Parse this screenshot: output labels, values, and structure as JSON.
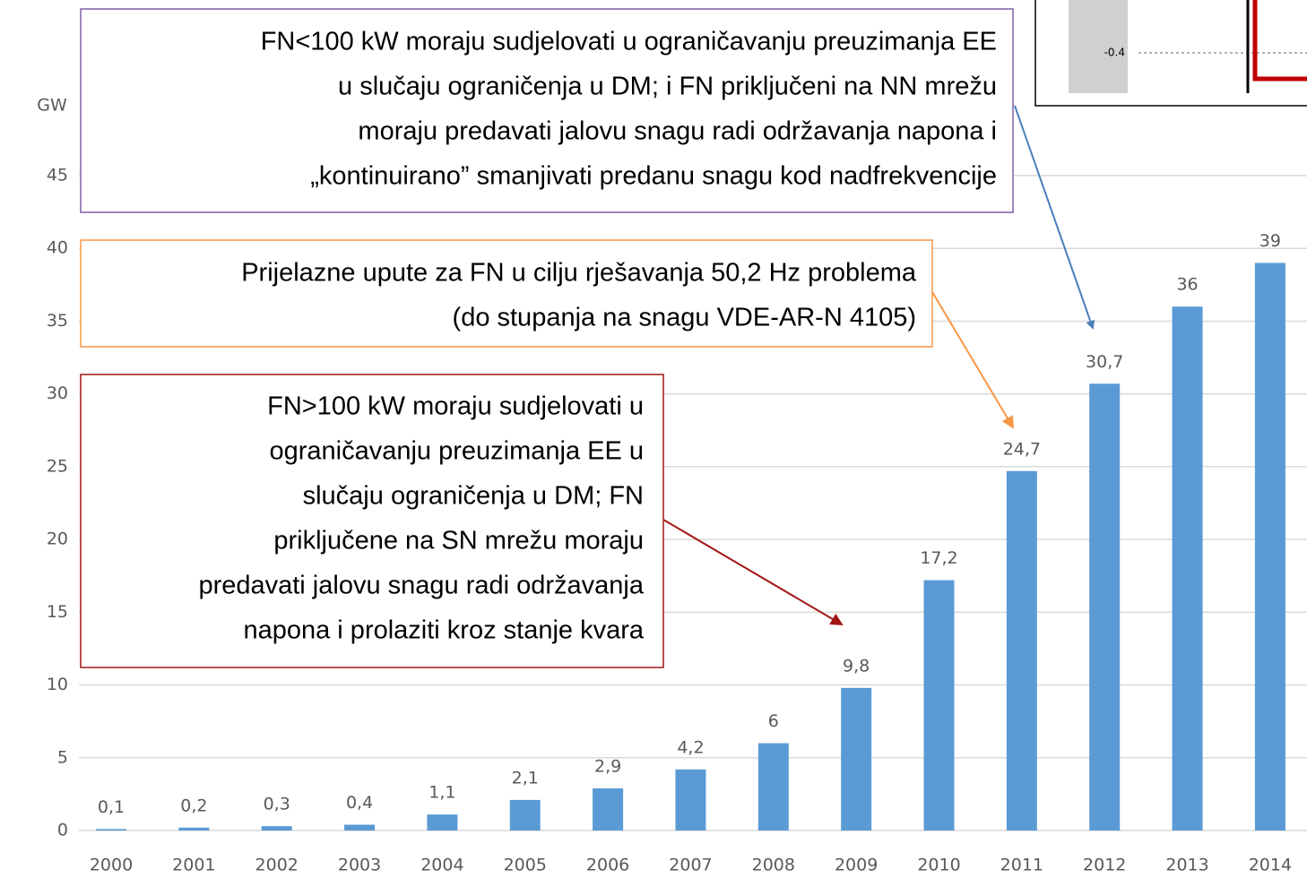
{
  "chart_data": {
    "type": "bar",
    "y_label": "GW",
    "categories": [
      "2000",
      "2001",
      "2002",
      "2003",
      "2004",
      "2005",
      "2006",
      "2007",
      "2008",
      "2009",
      "2010",
      "2011",
      "2012",
      "2013",
      "2014"
    ],
    "values": [
      0.1,
      0.2,
      0.3,
      0.4,
      1.1,
      2.1,
      2.9,
      4.2,
      6,
      9.8,
      17.2,
      24.7,
      30.7,
      36,
      39
    ],
    "value_labels": [
      "0,1",
      "0,2",
      "0,3",
      "0,4",
      "1,1",
      "2,1",
      "2,9",
      "4,2",
      "6",
      "9,8",
      "17,2",
      "24,7",
      "30,7",
      "36",
      "39"
    ],
    "color": "#5b9bd5",
    "ylim": [
      0,
      45
    ],
    "yticks": [
      0,
      5,
      10,
      15,
      20,
      25,
      30,
      35,
      40,
      45
    ],
    "grid": true,
    "annotations": [
      {
        "lines": [
          "FN<100 kW moraju sudjelovati u ograničavanju preuzimanja EE",
          "u slučaju ograničenja u DM;  i FN priključeni na NN mrežu",
          "moraju predavati jalovu snagu radi održavanja napona i",
          "„kontinuirano” smanjivati predanu snagu kod nadfrekvencije"
        ],
        "color": "#7f5fa8",
        "arrow_color": "#4a7ebb"
      },
      {
        "lines": [
          "Prijelazne upute za FN u cilju rješavanja 50,2 Hz problema",
          "(do stupanja na snagu VDE-AR-N 4105)"
        ],
        "color": "#f79646",
        "arrow_color": "#f79646"
      },
      {
        "lines": [
          "FN>100 kW moraju sudjelovati u",
          "ograničavanju preuzimanja EE u",
          "slučaju ograničenja u DM;  FN",
          "priključene na SN mrežu moraju",
          "predavati jalovu snagu radi održavanja",
          "napona i prolaziti kroz stanje kvara"
        ],
        "color": "#a31515",
        "arrow_color": "#a31515"
      }
    ],
    "inset": {
      "label": "-0.4"
    }
  }
}
